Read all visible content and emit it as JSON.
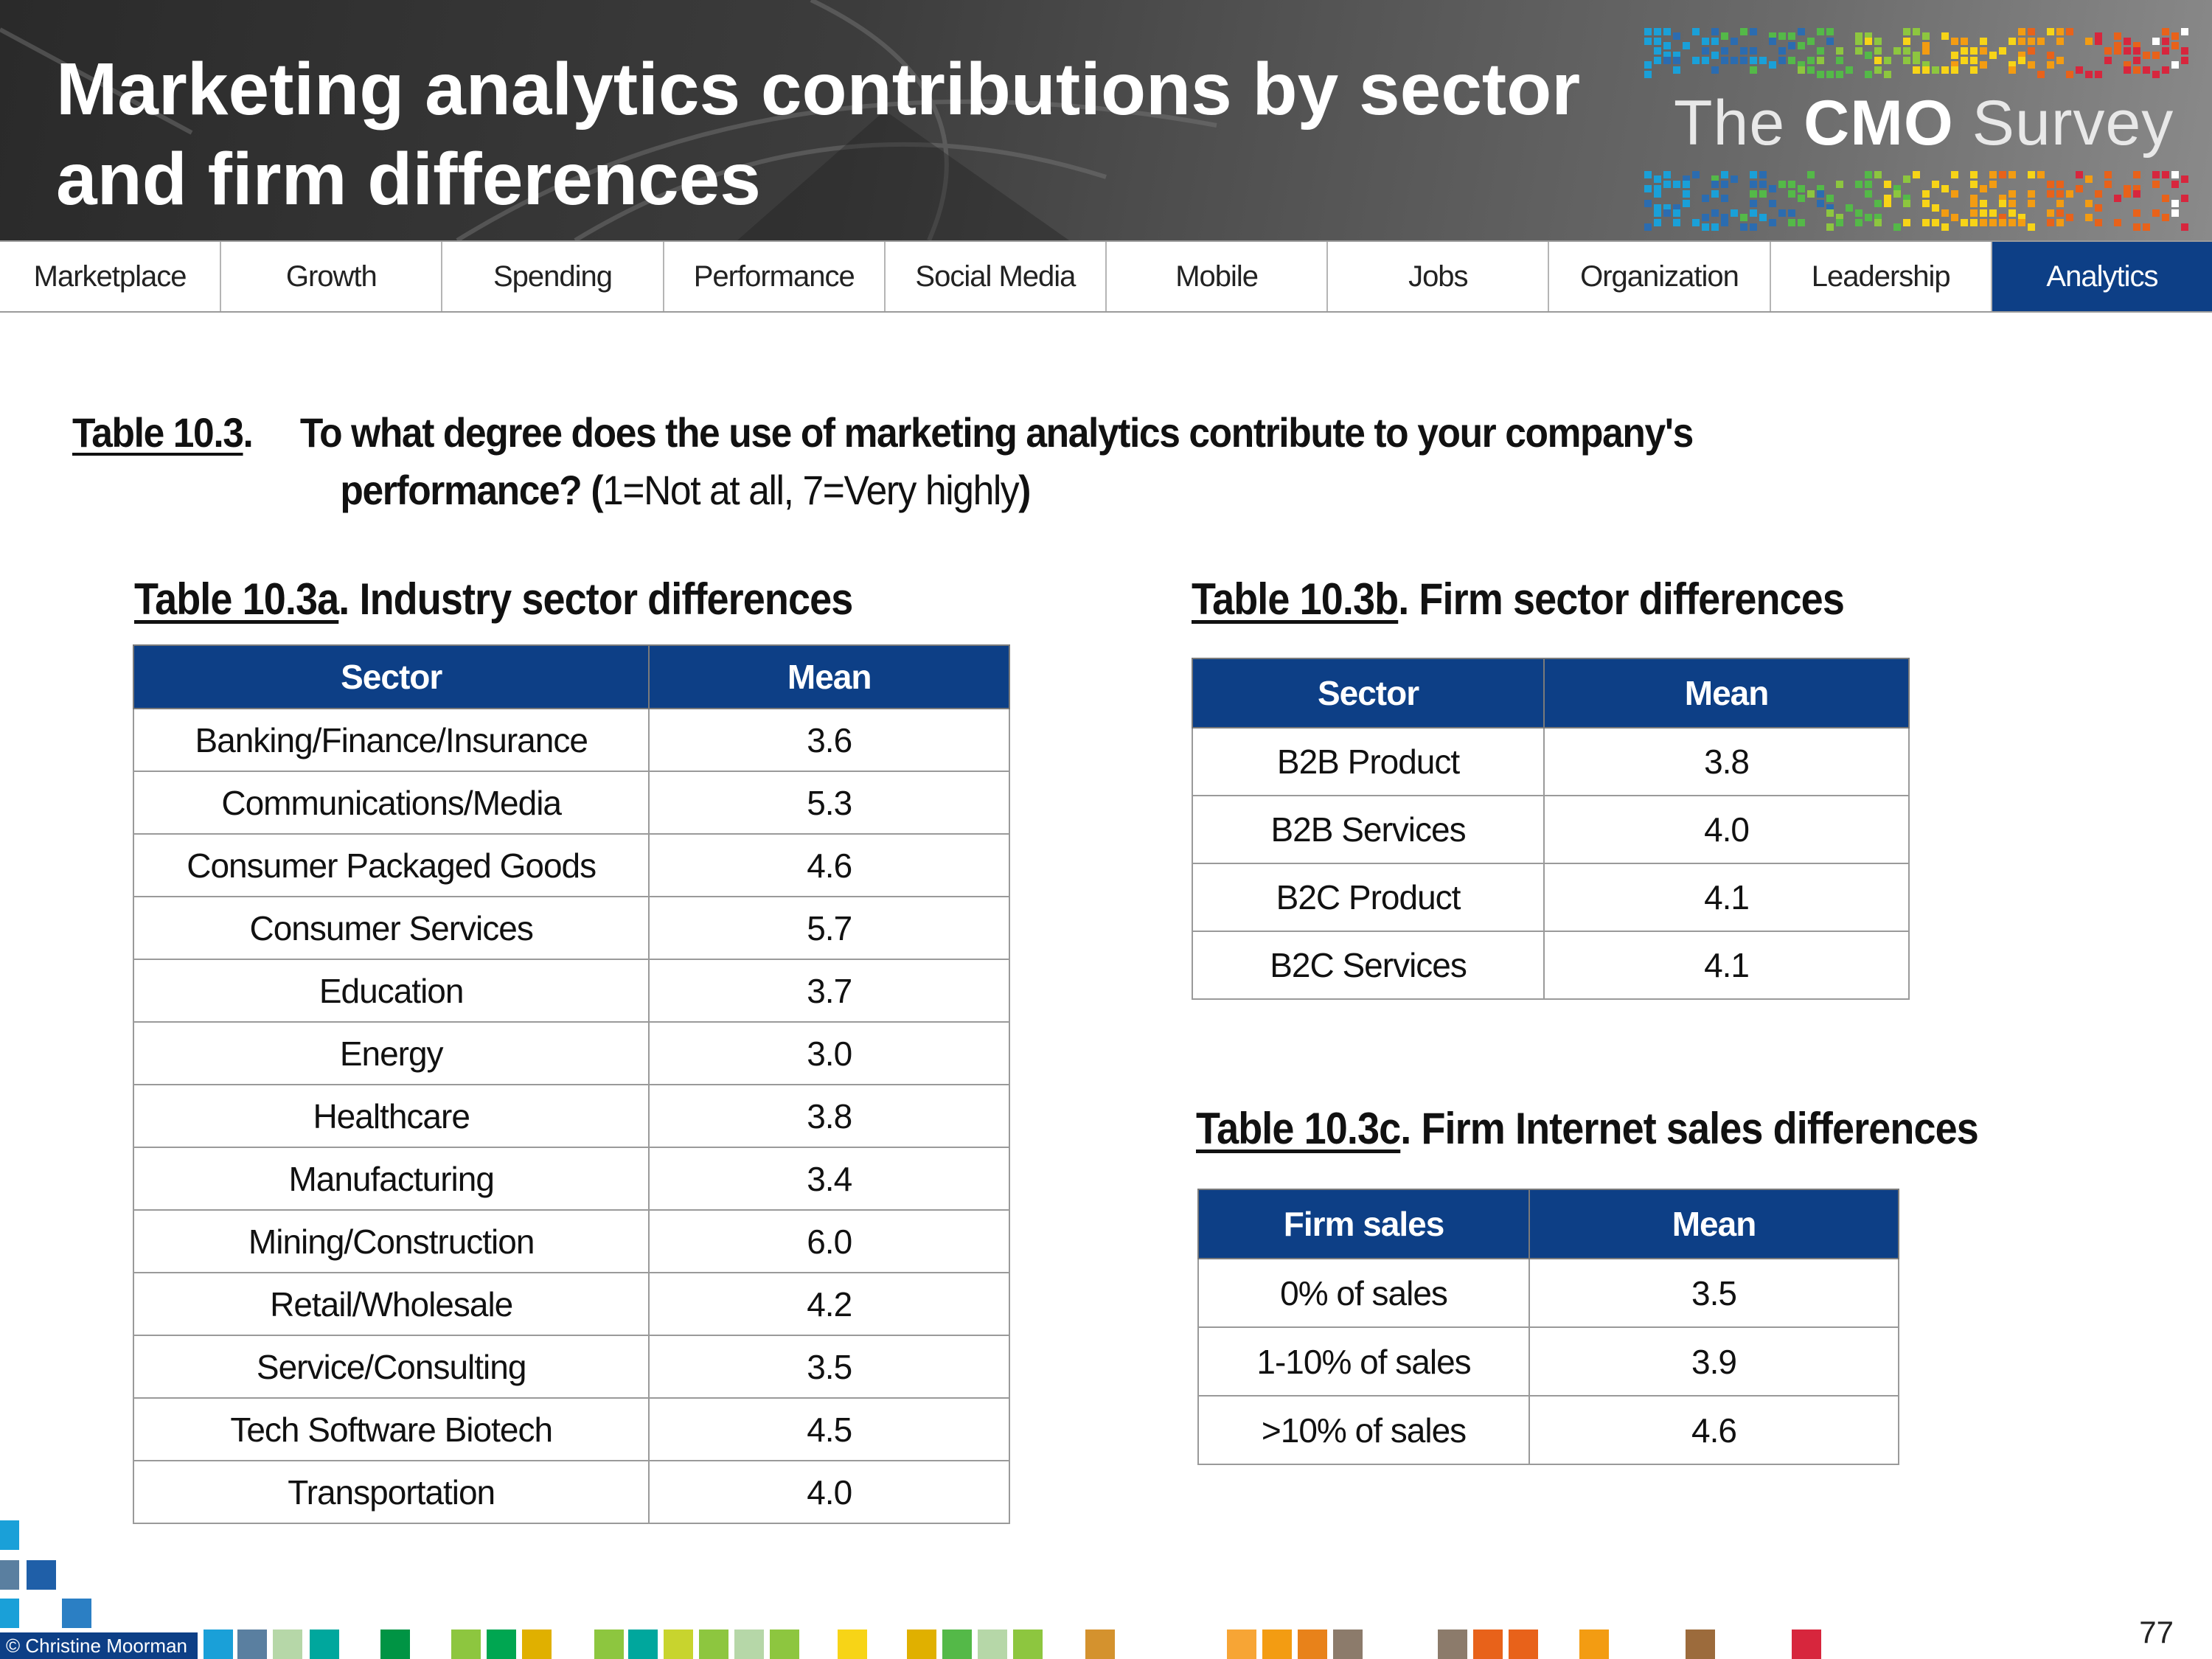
{
  "header": {
    "title_line1": "Marketing analytics contributions by sector",
    "title_line2": "and firm differences",
    "logo": {
      "prefix": "The ",
      "brand": "CMO",
      "suffix": " Survey"
    },
    "pixel_colors": [
      "#1aa0d8",
      "#2b6cb0",
      "#54b948",
      "#8dc63f",
      "#f7d417",
      "#f39c12",
      "#e8621a",
      "#d7263d",
      "#ffffff",
      "#00a79d"
    ]
  },
  "nav": {
    "tabs": [
      {
        "label": "Marketplace",
        "active": false
      },
      {
        "label": "Growth",
        "active": false
      },
      {
        "label": "Spending",
        "active": false
      },
      {
        "label": "Performance",
        "active": false
      },
      {
        "label": "Social Media",
        "active": false
      },
      {
        "label": "Mobile",
        "active": false
      },
      {
        "label": "Jobs",
        "active": false
      },
      {
        "label": "Organization",
        "active": false
      },
      {
        "label": "Leadership",
        "active": false
      },
      {
        "label": "Analytics",
        "active": true
      }
    ]
  },
  "question": {
    "label": "Table 10.3",
    "label_suffix": ".",
    "line1": "To what degree does the use of marketing analytics contribute to your company's",
    "line2_bold": "performance? (",
    "line2_plain": "1=Not at all, 7=Very highly",
    "line2_close": ")"
  },
  "table_a": {
    "label": "Table 10.3a",
    "title": ". Industry sector differences",
    "headers": [
      "Sector",
      "Mean"
    ],
    "rows": [
      [
        "Banking/Finance/Insurance",
        "3.6"
      ],
      [
        "Communications/Media",
        "5.3"
      ],
      [
        "Consumer Packaged Goods",
        "4.6"
      ],
      [
        "Consumer Services",
        "5.7"
      ],
      [
        "Education",
        "3.7"
      ],
      [
        "Energy",
        "3.0"
      ],
      [
        "Healthcare",
        "3.8"
      ],
      [
        "Manufacturing",
        "3.4"
      ],
      [
        "Mining/Construction",
        "6.0"
      ],
      [
        "Retail/Wholesale",
        "4.2"
      ],
      [
        "Service/Consulting",
        "3.5"
      ],
      [
        "Tech Software Biotech",
        "4.5"
      ],
      [
        "Transportation",
        "4.0"
      ]
    ]
  },
  "table_b": {
    "label": "Table 10.3b",
    "title": ". Firm sector differences",
    "headers": [
      "Sector",
      "Mean"
    ],
    "rows": [
      [
        "B2B Product",
        "3.8"
      ],
      [
        "B2B Services",
        "4.0"
      ],
      [
        "B2C Product",
        "4.1"
      ],
      [
        "B2C Services",
        "4.1"
      ]
    ]
  },
  "table_c": {
    "label": "Table 10.3c",
    "title": ". Firm Internet sales differences",
    "headers": [
      "Firm sales",
      "Mean"
    ],
    "rows": [
      [
        "0% of sales",
        "3.5"
      ],
      [
        "1-10% of sales",
        "3.9"
      ],
      [
        ">10% of sales",
        "4.6"
      ]
    ]
  },
  "footer": {
    "copyright": "© Christine Moorman",
    "page_number": "77",
    "square_colors": [
      "#1aa0d8",
      "#5a7fa0",
      "#b6d7a8",
      "#00a79d",
      "#009444",
      "#8dc63f",
      "#00a651",
      "#e0b000",
      "#f7d417",
      "#f39c12",
      "#e8621a",
      "#8c7b6b",
      "#9c6b3c",
      "#d7263d"
    ]
  }
}
